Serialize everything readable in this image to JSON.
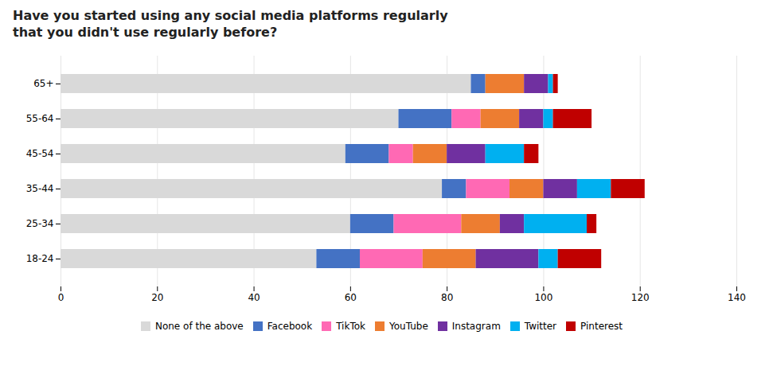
{
  "chart_data": {
    "type": "bar",
    "orientation": "horizontal",
    "stacked": true,
    "title": "Have you started using any social media platforms regularly\nthat you didn't use regularly before?",
    "categories": [
      "18-24",
      "25-34",
      "35-44",
      "45-54",
      "55-64",
      "65+"
    ],
    "series": [
      {
        "name": "None of the above",
        "color": "#d9d9d9",
        "values": [
          53,
          60,
          79,
          59,
          70,
          85
        ]
      },
      {
        "name": "Facebook",
        "color": "#4472c4",
        "values": [
          9,
          9,
          5,
          9,
          11,
          3
        ]
      },
      {
        "name": "TikTok",
        "color": "#ff69b4",
        "values": [
          13,
          14,
          9,
          5,
          6,
          0
        ]
      },
      {
        "name": "YouTube",
        "color": "#ed7d31",
        "values": [
          11,
          8,
          7,
          7,
          8,
          8
        ]
      },
      {
        "name": "Instagram",
        "color": "#7030a0",
        "values": [
          13,
          5,
          7,
          8,
          5,
          5
        ]
      },
      {
        "name": "Twitter",
        "color": "#00b0f0",
        "values": [
          4,
          13,
          7,
          8,
          2,
          1
        ]
      },
      {
        "name": "Pinterest",
        "color": "#c00000",
        "values": [
          9,
          2,
          7,
          3,
          8,
          1
        ]
      }
    ],
    "xlim": [
      0,
      140
    ],
    "xticks": [
      0,
      20,
      40,
      60,
      80,
      100,
      120,
      140
    ],
    "grid": true,
    "legend": "bottom"
  }
}
